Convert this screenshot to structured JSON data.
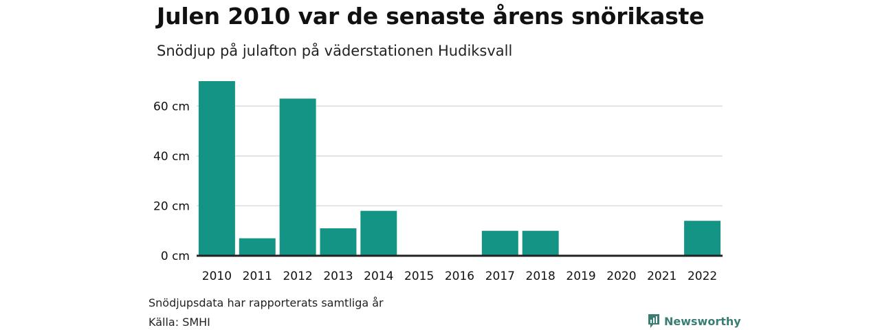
{
  "header": {
    "title": "Julen 2010 var de senaste årens snörikaste",
    "subtitle": "Snödjup på julafton på väderstationen Hudiksvall"
  },
  "footer": {
    "note": "Snödjupsdata har rapporterats samtliga år",
    "source": "Källa: SMHI",
    "brand": "Newsworthy",
    "brand_icon": "newsworthy-logo-icon"
  },
  "colors": {
    "bar": "#139485",
    "grid": "#dcdcdc",
    "baseline": "#222222",
    "brand": "#3a7d74"
  },
  "chart_data": {
    "type": "bar",
    "title": "Julen 2010 var de senaste årens snörikaste",
    "subtitle": "Snödjup på julafton på väderstationen Hudiksvall",
    "xlabel": "",
    "ylabel": "",
    "categories": [
      "2010",
      "2011",
      "2012",
      "2013",
      "2014",
      "2015",
      "2016",
      "2017",
      "2018",
      "2019",
      "2020",
      "2021",
      "2022"
    ],
    "values": [
      70,
      7,
      63,
      11,
      18,
      0,
      0,
      10,
      10,
      0,
      0,
      0,
      14
    ],
    "unit": "cm",
    "ylim": [
      0,
      70
    ],
    "yticks": [
      0,
      20,
      40,
      60
    ],
    "ytick_labels": [
      "0 cm",
      "20 cm",
      "40 cm",
      "60 cm"
    ],
    "grid": true,
    "legend": "none"
  }
}
